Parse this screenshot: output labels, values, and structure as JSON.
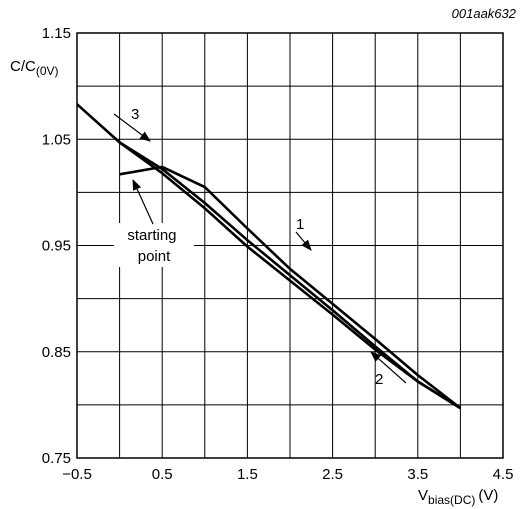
{
  "chart_data": {
    "type": "line",
    "code": "001aak632",
    "xlabel": {
      "main": "V",
      "sub": "bias(DC)",
      "unit": "(V)"
    },
    "ylabel": {
      "main": "C/C",
      "sub": "(0V)"
    },
    "xlim": [
      -0.5,
      4.5
    ],
    "ylim": [
      0.75,
      1.15
    ],
    "xticks": [
      -0.5,
      0.5,
      1.5,
      2.5,
      3.5,
      4.5
    ],
    "xtick_labels": [
      "−0.5",
      "0.5",
      "1.5",
      "2.5",
      "3.5",
      "4.5"
    ],
    "yticks": [
      0.75,
      0.85,
      0.95,
      1.05,
      1.15
    ],
    "ytick_labels": [
      "0.75",
      "0.85",
      "0.95",
      "1.05",
      "1.15"
    ],
    "grid": true,
    "series": [
      {
        "label": "1",
        "x": [
          0,
          0.5,
          1.0,
          1.5,
          2.0,
          2.5,
          3.0,
          3.5,
          4.0
        ],
        "y": [
          1.017,
          1.024,
          1.005,
          0.966,
          0.928,
          0.895,
          0.862,
          0.828,
          0.797
        ]
      },
      {
        "label": "2",
        "x": [
          4.0,
          3.5,
          3.0,
          2.5,
          2.0,
          1.5,
          1.0,
          0.5,
          0.0
        ],
        "y": [
          0.797,
          0.822,
          0.855,
          0.889,
          0.922,
          0.955,
          0.99,
          1.022,
          1.047
        ]
      },
      {
        "label": "3",
        "x": [
          -0.5,
          0.0,
          0.5,
          1.0,
          1.5,
          2.0,
          2.5,
          3.0,
          3.5,
          4.0
        ],
        "y": [
          1.083,
          1.047,
          1.018,
          0.985,
          0.949,
          0.917,
          0.885,
          0.852,
          0.822,
          0.797
        ]
      }
    ],
    "annotations": {
      "starting_point": [
        "starting",
        "point"
      ]
    }
  }
}
